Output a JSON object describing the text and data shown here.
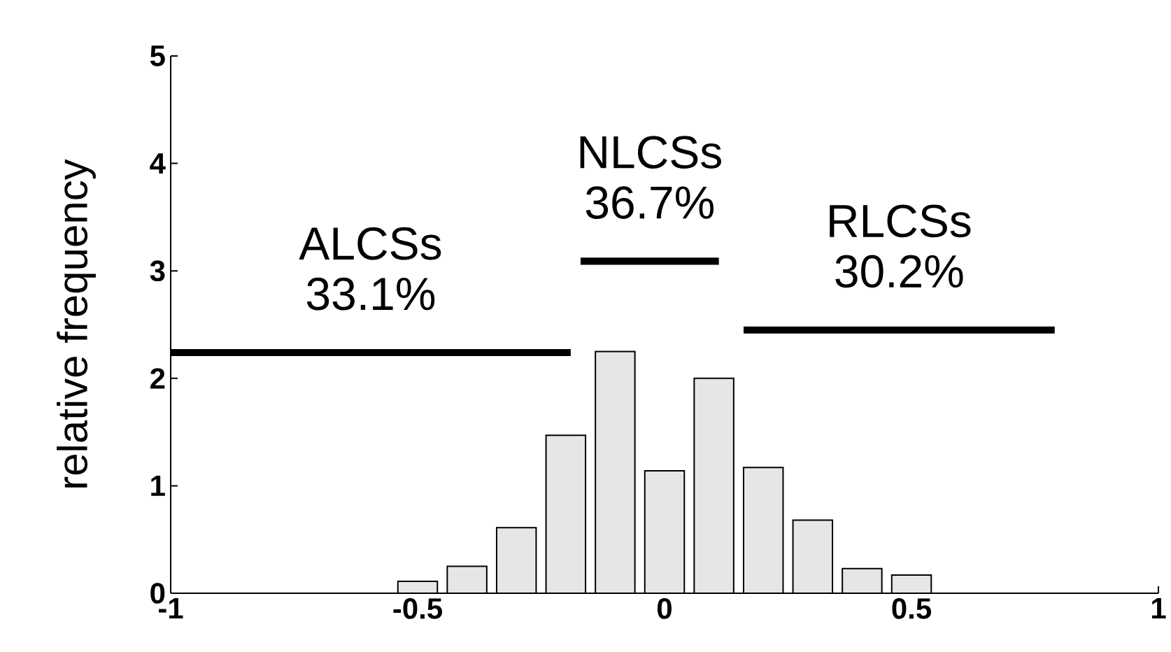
{
  "chart_data": {
    "type": "histogram",
    "ylabel": "relative frequency",
    "xlim": [
      -1,
      1
    ],
    "xticks": [
      -1,
      -0.5,
      0,
      0.5,
      1
    ],
    "ylim": [
      0,
      5
    ],
    "yticks": [
      0,
      1,
      2,
      3,
      4,
      5
    ],
    "grid": false,
    "series": [
      {
        "color": "#e6e6e6",
        "bins": [
          -0.55,
          -0.45,
          -0.35,
          -0.25,
          -0.15,
          -0.05,
          0.05,
          0.15,
          0.25,
          0.35,
          0.45,
          0.55
        ],
        "values": [
          0.11,
          0.25,
          0.61,
          1.47,
          2.25,
          1.14,
          2.0,
          1.17,
          0.68,
          0.23,
          0.17
        ]
      },
      {
        "type": "line",
        "color": "#000000",
        "x": [
          -1,
          -0.19
        ],
        "values": [
          2.24,
          2.24
        ]
      },
      {
        "type": "line",
        "color": "#000000",
        "x": [
          -0.17,
          0.11
        ],
        "values": [
          3.09,
          3.09
        ]
      },
      {
        "type": "line",
        "color": "#000000",
        "x": [
          0.16,
          0.79
        ],
        "values": [
          2.45,
          2.45
        ]
      }
    ],
    "annotations": [
      "ALCSs",
      "33.1%",
      "NLCSs",
      "36.7%",
      "RLCSs",
      "30.2%"
    ]
  }
}
